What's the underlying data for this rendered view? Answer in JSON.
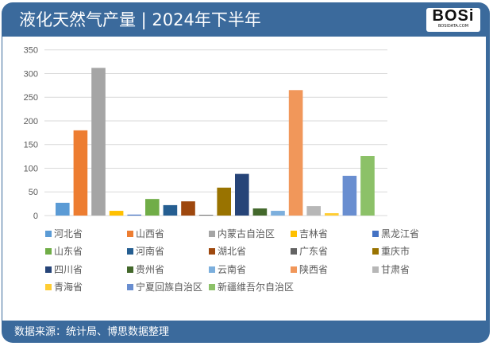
{
  "header": {
    "title": "液化天然气产量 | 2024年下半年",
    "logo_text": "BOSi",
    "logo_subtext": "BOSIDATA.COM"
  },
  "footer": {
    "source": "数据来源：统计局、博思数据整理"
  },
  "chart_data": {
    "type": "bar",
    "title": "",
    "xlabel": "",
    "ylabel": "",
    "ylim": [
      0,
      350
    ],
    "yticks": [
      0,
      50,
      100,
      150,
      200,
      250,
      300,
      350
    ],
    "grid": true,
    "legend_placement": "bottom",
    "series": [
      {
        "name": "河北省",
        "value": 27,
        "color": "#5B9BD5"
      },
      {
        "name": "山西省",
        "value": 180,
        "color": "#ED7D31"
      },
      {
        "name": "内蒙古自治区",
        "value": 312,
        "color": "#A5A5A5"
      },
      {
        "name": "吉林省",
        "value": 10,
        "color": "#FFC000"
      },
      {
        "name": "黑龙江省",
        "value": 2,
        "color": "#4472C4"
      },
      {
        "name": "山东省",
        "value": 35,
        "color": "#70AD47"
      },
      {
        "name": "河南省",
        "value": 22,
        "color": "#255E91"
      },
      {
        "name": "湖北省",
        "value": 30,
        "color": "#9E480E"
      },
      {
        "name": "广东省",
        "value": 1.5,
        "color": "#636363"
      },
      {
        "name": "重庆市",
        "value": 59,
        "color": "#997300"
      },
      {
        "name": "四川省",
        "value": 88,
        "color": "#264478"
      },
      {
        "name": "贵州省",
        "value": 15,
        "color": "#43682B"
      },
      {
        "name": "云南省",
        "value": 10,
        "color": "#7CAFDD"
      },
      {
        "name": "陕西省",
        "value": 265,
        "color": "#F1975A"
      },
      {
        "name": "甘肃省",
        "value": 20,
        "color": "#B7B7B7"
      },
      {
        "name": "青海省",
        "value": 5,
        "color": "#FFCD33"
      },
      {
        "name": "宁夏回族自治区",
        "value": 84,
        "color": "#698ED0"
      },
      {
        "name": "新疆维吾尔自治区",
        "value": 126,
        "color": "#8CC168"
      }
    ]
  }
}
